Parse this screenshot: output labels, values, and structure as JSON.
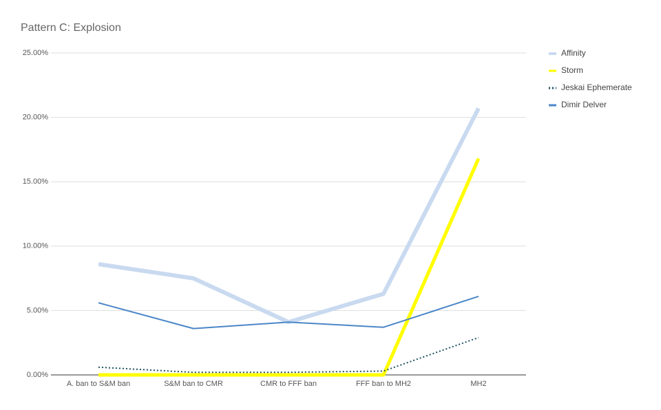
{
  "chart_data": {
    "type": "line",
    "title": "Pattern C: Explosion",
    "categories": [
      "A. ban to S&M ban",
      "S&M ban to CMR",
      "CMR to FFF ban",
      "FFF ban to MH2",
      "MH2"
    ],
    "series": [
      {
        "name": "Affinity",
        "color": "#c9daf0",
        "values": [
          8.6,
          7.5,
          4.1,
          6.3,
          20.7
        ]
      },
      {
        "name": "Storm",
        "color": "#ffff00",
        "values": [
          0,
          0,
          0,
          0,
          16.8
        ]
      },
      {
        "name": "Jeskai Ephemerate",
        "color": "#1c4f5e",
        "values": [
          0.6,
          0.2,
          0.2,
          0.3,
          2.9
        ]
      },
      {
        "name": "Dimir Delver",
        "color": "#4a86c8",
        "values": [
          5.6,
          3.6,
          4.1,
          3.7,
          6.1
        ]
      }
    ],
    "ylim": [
      0,
      25
    ],
    "yticks": [
      {
        "value": 0,
        "label": "0.00%"
      },
      {
        "value": 5,
        "label": "5.00%"
      },
      {
        "value": 10,
        "label": "10.00%"
      },
      {
        "value": 15,
        "label": "15.00%"
      },
      {
        "value": 20,
        "label": "20.00%"
      },
      {
        "value": 25,
        "label": "25.00%"
      }
    ],
    "grid": true,
    "legend": "right"
  }
}
